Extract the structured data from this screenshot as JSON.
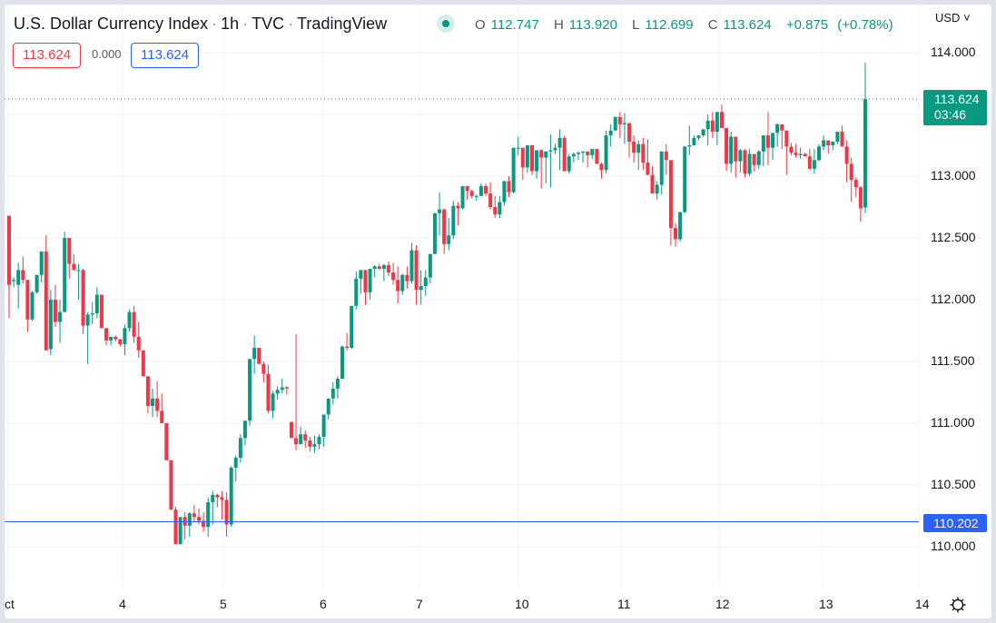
{
  "header": {
    "title": "U.S. Dollar Currency Index",
    "interval": "1h",
    "exchange": "TVC",
    "source": "TradingView",
    "market_status": "open",
    "ohlc": {
      "open_label": "O",
      "open": "112.747",
      "high_label": "H",
      "high": "113.920",
      "low_label": "L",
      "low": "112.699",
      "close_label": "C",
      "close": "113.624",
      "change": "+0.875",
      "change_pct": "(+0.78%)"
    },
    "bid": "113.624",
    "spread": "0.000",
    "ask": "113.624"
  },
  "price_scale": {
    "currency": "USD",
    "labels": [
      "114.000",
      "113.000",
      "112.500",
      "112.000",
      "111.500",
      "111.000",
      "110.500",
      "110.000"
    ],
    "last_price": "113.624",
    "countdown": "03:46",
    "horizontal_line_price": "110.202"
  },
  "time_scale": {
    "labels": [
      "ct",
      "4",
      "5",
      "6",
      "7",
      "10",
      "11",
      "12",
      "13",
      "14"
    ]
  },
  "colors": {
    "up": "#089981",
    "down": "#f23645",
    "horizontal_line": "#2962ff",
    "grid": "#f0f3fa"
  },
  "chart_data": {
    "type": "candlestick",
    "title": "U.S. Dollar Currency Index · 1h · TVC · TradingView",
    "xlabel": "",
    "ylabel": "USD",
    "ylim": [
      109.75,
      114.15
    ],
    "x_ticks": [
      "Oct",
      "4",
      "5",
      "6",
      "7",
      "10",
      "11",
      "12",
      "13",
      "14"
    ],
    "y_ticks": [
      110.0,
      110.5,
      111.0,
      111.5,
      112.0,
      112.5,
      113.0,
      114.0
    ],
    "grid": true,
    "last_price": 113.624,
    "horizontal_line": 110.202,
    "candles": [
      [
        112.68,
        112.68,
        111.85,
        112.12
      ],
      [
        112.15,
        112.18,
        112.1,
        112.16
      ],
      [
        112.12,
        112.3,
        111.93,
        112.24
      ],
      [
        112.24,
        112.35,
        112.13,
        112.16
      ],
      [
        112.16,
        112.16,
        111.74,
        111.84
      ],
      [
        111.84,
        112.07,
        111.83,
        112.06
      ],
      [
        112.06,
        112.2,
        112.05,
        112.2
      ],
      [
        112.2,
        112.36,
        112.14,
        112.39
      ],
      [
        112.39,
        112.52,
        111.6,
        111.59
      ],
      [
        111.6,
        112.08,
        111.55,
        112.0
      ],
      [
        112.0,
        112.12,
        111.78,
        111.82
      ],
      [
        111.82,
        112.0,
        111.65,
        111.9
      ],
      [
        111.9,
        112.55,
        111.9,
        112.5
      ],
      [
        112.5,
        112.46,
        112.17,
        112.29
      ],
      [
        112.29,
        112.37,
        112.25,
        112.24
      ],
      [
        112.24,
        112.29,
        112.0,
        112.24
      ],
      [
        112.24,
        112.25,
        111.72,
        111.79
      ],
      [
        111.79,
        111.9,
        111.48,
        111.88
      ],
      [
        111.88,
        111.98,
        111.8,
        111.89
      ],
      [
        111.89,
        112.1,
        111.85,
        112.04
      ],
      [
        112.04,
        112.04,
        111.77,
        111.77
      ],
      [
        111.77,
        111.77,
        111.63,
        111.67
      ],
      [
        111.67,
        111.7,
        111.63,
        111.7
      ],
      [
        111.7,
        111.71,
        111.66,
        111.68
      ],
      [
        111.68,
        111.68,
        111.62,
        111.64
      ],
      [
        111.64,
        111.8,
        111.55,
        111.77
      ],
      [
        111.77,
        111.92,
        111.74,
        111.9
      ],
      [
        111.9,
        111.95,
        111.65,
        111.7
      ],
      [
        111.7,
        111.82,
        111.53,
        111.59
      ],
      [
        111.59,
        111.55,
        111.38,
        111.38
      ],
      [
        111.38,
        111.34,
        111.08,
        111.14
      ],
      [
        111.14,
        111.28,
        111.05,
        111.2
      ],
      [
        111.2,
        111.34,
        111.05,
        111.1
      ],
      [
        111.1,
        111.24,
        111.0,
        111.0
      ],
      [
        111.0,
        111.0,
        110.7,
        110.7
      ],
      [
        110.7,
        110.64,
        110.4,
        110.3
      ],
      [
        110.3,
        110.32,
        110.04,
        110.02
      ],
      [
        110.02,
        110.22,
        110.04,
        110.24
      ],
      [
        110.24,
        110.28,
        110.06,
        110.17
      ],
      [
        110.17,
        110.28,
        110.08,
        110.27
      ],
      [
        110.27,
        110.34,
        110.2,
        110.24
      ],
      [
        110.24,
        110.31,
        110.18,
        110.21
      ],
      [
        110.21,
        110.28,
        110.12,
        110.16
      ],
      [
        110.16,
        110.4,
        110.08,
        110.36
      ],
      [
        110.36,
        110.45,
        110.18,
        110.42
      ],
      [
        110.42,
        110.43,
        110.32,
        110.4
      ],
      [
        110.4,
        110.45,
        110.22,
        110.38
      ],
      [
        110.38,
        110.44,
        110.08,
        110.18
      ],
      [
        110.18,
        110.65,
        110.16,
        110.64
      ],
      [
        110.64,
        110.74,
        110.53,
        110.72
      ],
      [
        110.72,
        110.91,
        110.68,
        110.88
      ],
      [
        110.88,
        110.99,
        110.82,
        111.02
      ],
      [
        111.02,
        111.35,
        110.98,
        111.52
      ],
      [
        111.52,
        111.71,
        111.4,
        111.61
      ],
      [
        111.61,
        111.58,
        111.5,
        111.48
      ],
      [
        111.48,
        111.5,
        111.33,
        111.4
      ],
      [
        111.4,
        111.47,
        111.08,
        111.1
      ],
      [
        111.1,
        111.26,
        111.04,
        111.24
      ],
      [
        111.24,
        111.3,
        111.19,
        111.27
      ],
      [
        111.27,
        111.36,
        111.24,
        111.29
      ],
      [
        111.29,
        111.3,
        111.23,
        111.28
      ],
      [
        111.01,
        111.01,
        110.88,
        110.88
      ],
      [
        110.88,
        111.72,
        110.78,
        110.83
      ],
      [
        110.83,
        110.97,
        110.87,
        110.91
      ],
      [
        110.91,
        110.94,
        110.8,
        110.86
      ],
      [
        110.86,
        110.89,
        110.77,
        110.81
      ],
      [
        110.81,
        110.9,
        110.76,
        110.83
      ],
      [
        110.83,
        110.91,
        110.79,
        110.89
      ],
      [
        110.89,
        111.07,
        110.81,
        111.07
      ],
      [
        111.07,
        111.17,
        111.03,
        111.2
      ],
      [
        111.2,
        111.33,
        111.15,
        111.28
      ],
      [
        111.28,
        111.38,
        111.2,
        111.36
      ],
      [
        111.36,
        111.63,
        111.36,
        111.62
      ],
      [
        111.62,
        111.73,
        111.59,
        111.61
      ],
      [
        111.61,
        111.8,
        111.6,
        111.95
      ],
      [
        111.95,
        112.23,
        111.92,
        112.17
      ],
      [
        112.17,
        112.22,
        112.05,
        112.24
      ],
      [
        112.24,
        112.19,
        111.96,
        112.06
      ],
      [
        112.06,
        112.21,
        112.0,
        112.25
      ],
      [
        112.25,
        112.28,
        112.18,
        112.27
      ],
      [
        112.27,
        112.29,
        112.24,
        112.25
      ],
      [
        112.25,
        112.29,
        112.15,
        112.28
      ],
      [
        112.28,
        112.31,
        112.19,
        112.22
      ],
      [
        112.22,
        112.3,
        112.12,
        112.16
      ],
      [
        112.16,
        112.27,
        111.97,
        112.07
      ],
      [
        112.07,
        112.21,
        112.04,
        112.2
      ],
      [
        112.2,
        112.27,
        112.09,
        112.15
      ],
      [
        112.15,
        112.46,
        112.13,
        112.4
      ],
      [
        112.4,
        112.44,
        111.96,
        112.08
      ],
      [
        112.08,
        112.24,
        111.96,
        112.11
      ],
      [
        112.11,
        112.24,
        112.03,
        112.18
      ],
      [
        112.18,
        112.37,
        112.13,
        112.37
      ],
      [
        112.37,
        112.6,
        112.37,
        112.7
      ],
      [
        112.7,
        112.87,
        112.52,
        112.73
      ],
      [
        112.73,
        112.74,
        112.37,
        112.45
      ],
      [
        112.45,
        112.66,
        112.4,
        112.52
      ],
      [
        112.52,
        112.8,
        112.49,
        112.76
      ],
      [
        112.76,
        112.79,
        112.6,
        112.74
      ],
      [
        112.74,
        112.92,
        112.73,
        112.92
      ],
      [
        112.92,
        112.91,
        112.81,
        112.88
      ],
      [
        112.88,
        112.89,
        112.82,
        112.84
      ],
      [
        112.84,
        112.85,
        112.8,
        112.84
      ],
      [
        112.84,
        112.94,
        112.87,
        112.92
      ],
      [
        112.92,
        112.94,
        112.84,
        112.86
      ],
      [
        112.86,
        112.95,
        112.73,
        112.75
      ],
      [
        112.75,
        112.84,
        112.66,
        112.69
      ],
      [
        112.69,
        112.84,
        112.66,
        112.79
      ],
      [
        112.79,
        112.95,
        112.76,
        112.96
      ],
      [
        112.96,
        113.0,
        112.83,
        112.87
      ],
      [
        112.87,
        113.15,
        112.86,
        113.23
      ],
      [
        113.23,
        113.32,
        113.17,
        113.23
      ],
      [
        113.23,
        113.23,
        112.97,
        113.07
      ],
      [
        113.07,
        113.23,
        113.03,
        113.25
      ],
      [
        113.25,
        113.19,
        113.01,
        113.04
      ],
      [
        113.04,
        113.17,
        112.98,
        113.21
      ],
      [
        113.21,
        113.22,
        112.9,
        113.15
      ],
      [
        113.15,
        113.19,
        112.94,
        113.2
      ],
      [
        113.2,
        113.34,
        112.91,
        113.21
      ],
      [
        113.21,
        113.26,
        113.18,
        113.23
      ],
      [
        113.23,
        113.38,
        113.05,
        113.31
      ],
      [
        113.31,
        113.33,
        113.13,
        113.04
      ],
      [
        113.04,
        113.18,
        113.02,
        113.16
      ],
      [
        113.16,
        113.19,
        113.11,
        113.18
      ],
      [
        113.18,
        113.2,
        113.13,
        113.19
      ],
      [
        113.19,
        113.2,
        113.11,
        113.2
      ],
      [
        113.2,
        113.18,
        113.07,
        113.17
      ],
      [
        113.17,
        113.22,
        113.14,
        113.22
      ],
      [
        113.22,
        113.15,
        113.12,
        113.1
      ],
      [
        113.1,
        113.11,
        112.98,
        113.05
      ],
      [
        113.05,
        113.37,
        113.02,
        113.33
      ],
      [
        113.33,
        113.42,
        113.24,
        113.37
      ],
      [
        113.37,
        113.48,
        113.38,
        113.48
      ],
      [
        113.48,
        113.52,
        113.31,
        113.42
      ],
      [
        113.42,
        113.51,
        113.26,
        113.43
      ],
      [
        113.43,
        113.43,
        113.15,
        113.28
      ],
      [
        113.28,
        113.33,
        113.11,
        113.19
      ],
      [
        113.19,
        113.29,
        113.05,
        113.26
      ],
      [
        113.26,
        113.31,
        113.05,
        113.11
      ],
      [
        113.11,
        113.3,
        113.01,
        113.01
      ],
      [
        113.01,
        113.08,
        112.87,
        112.86
      ],
      [
        112.86,
        112.96,
        112.81,
        112.93
      ],
      [
        112.93,
        113.2,
        112.85,
        113.2
      ],
      [
        113.2,
        113.26,
        113.01,
        113.13
      ],
      [
        113.13,
        113.05,
        112.44,
        112.58
      ],
      [
        112.58,
        112.62,
        112.43,
        112.49
      ],
      [
        112.49,
        112.71,
        112.47,
        112.71
      ],
      [
        112.71,
        113.23,
        112.7,
        113.24
      ],
      [
        113.24,
        113.41,
        113.17,
        113.25
      ],
      [
        113.25,
        113.33,
        113.25,
        113.31
      ],
      [
        113.31,
        113.32,
        113.29,
        113.33
      ],
      [
        113.33,
        113.36,
        113.32,
        113.38
      ],
      [
        113.38,
        113.5,
        113.25,
        113.45
      ],
      [
        113.45,
        113.52,
        113.31,
        113.36
      ],
      [
        113.36,
        113.48,
        113.25,
        113.52
      ],
      [
        113.52,
        113.58,
        113.39,
        113.39
      ],
      [
        113.39,
        113.37,
        113.04,
        113.1
      ],
      [
        113.1,
        113.36,
        113.03,
        113.32
      ],
      [
        113.32,
        113.31,
        112.99,
        113.12
      ],
      [
        113.12,
        113.22,
        113.03,
        113.21
      ],
      [
        113.21,
        113.22,
        112.99,
        113.02
      ],
      [
        113.02,
        113.22,
        113.0,
        113.18
      ],
      [
        113.18,
        113.18,
        113.04,
        113.09
      ],
      [
        113.09,
        113.21,
        113.06,
        113.2
      ],
      [
        113.2,
        113.33,
        113.08,
        113.33
      ],
      [
        113.33,
        113.52,
        113.09,
        113.23
      ],
      [
        113.23,
        113.33,
        113.13,
        113.35
      ],
      [
        113.35,
        113.43,
        113.24,
        113.42
      ],
      [
        113.42,
        113.4,
        113.22,
        113.37
      ],
      [
        113.37,
        113.35,
        113.01,
        113.24
      ],
      [
        113.24,
        113.27,
        113.17,
        113.19
      ],
      [
        113.19,
        113.26,
        113.15,
        113.17
      ],
      [
        113.17,
        113.23,
        113.14,
        113.18
      ],
      [
        113.18,
        113.19,
        113.17,
        113.16
      ],
      [
        113.16,
        113.22,
        113.05,
        113.06
      ],
      [
        113.06,
        113.22,
        113.02,
        113.13
      ],
      [
        113.13,
        113.26,
        113.12,
        113.24
      ],
      [
        113.24,
        113.33,
        113.21,
        113.29
      ],
      [
        113.29,
        113.27,
        113.18,
        113.25
      ],
      [
        113.25,
        113.28,
        113.21,
        113.28
      ],
      [
        113.28,
        113.36,
        113.26,
        113.36
      ],
      [
        113.36,
        113.41,
        113.24,
        113.24
      ],
      [
        113.24,
        113.29,
        112.95,
        113.1
      ],
      [
        113.1,
        113.15,
        112.79,
        112.97
      ],
      [
        112.97,
        112.99,
        112.83,
        112.91
      ],
      [
        112.91,
        112.92,
        112.63,
        112.74
      ],
      [
        112.747,
        113.92,
        112.699,
        113.624
      ]
    ]
  }
}
